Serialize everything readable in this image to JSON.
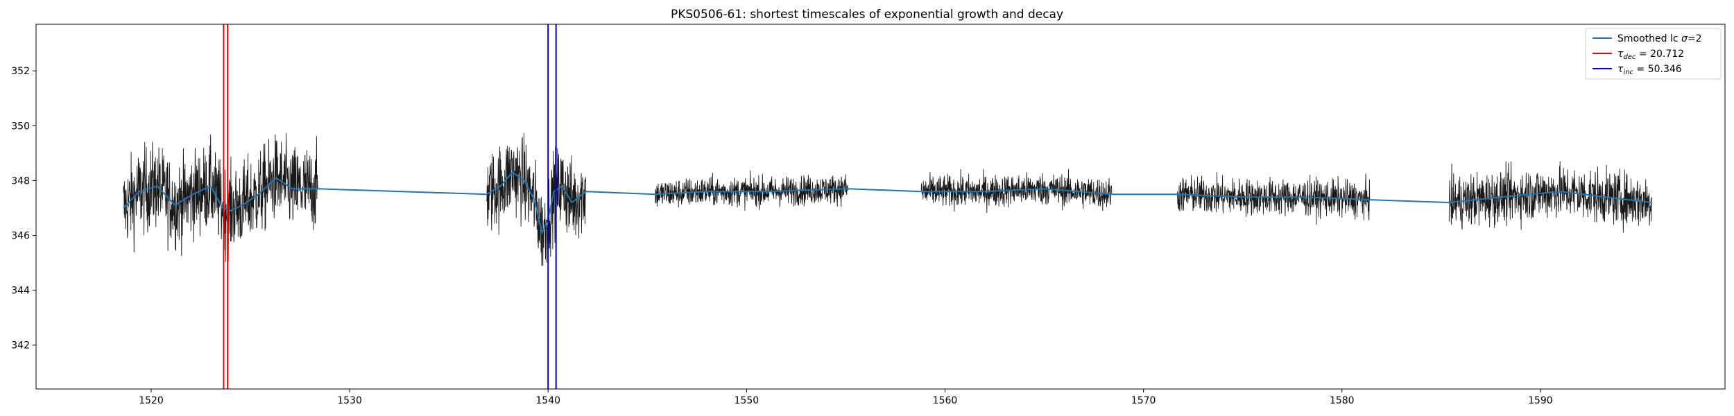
{
  "chart_data": {
    "type": "line",
    "title": "PKS0506-61: shortest timescales of exponential growth and decay",
    "xlabel": "",
    "ylabel": "",
    "xlim": [
      1514.2,
      1599.3
    ],
    "ylim": [
      340.4,
      353.7
    ],
    "xticks": [
      1520,
      1530,
      1540,
      1550,
      1560,
      1570,
      1580,
      1590
    ],
    "yticks": [
      342,
      344,
      346,
      348,
      350,
      352
    ],
    "grid": false,
    "legend_position": "top-right",
    "raw_lightcurve": {
      "color": "#000000",
      "noise_scale": 0.75,
      "segments": [
        {
          "x_start": 1518.6,
          "x_end": 1528.4,
          "y_min": 344.3,
          "y_max": 350.1
        },
        {
          "x_start": 1536.9,
          "x_end": 1541.9,
          "y_min": 344.4,
          "y_max": 350.1
        },
        {
          "x_start": 1545.4,
          "x_end": 1555.1,
          "y_min": 346.7,
          "y_max": 348.7
        },
        {
          "x_start": 1558.8,
          "x_end": 1568.4,
          "y_min": 346.5,
          "y_max": 348.7
        },
        {
          "x_start": 1571.7,
          "x_end": 1581.4,
          "y_min": 346.3,
          "y_max": 348.8
        },
        {
          "x_start": 1585.4,
          "x_end": 1595.6,
          "y_min": 345.6,
          "y_max": 349.2
        }
      ]
    },
    "series": [
      {
        "name": "Smoothed lc σ=2",
        "color": "#1f77b4",
        "x": [
          1518.6,
          1519.4,
          1520.3,
          1521.2,
          1522.1,
          1523.0,
          1523.6,
          1524.0,
          1524.6,
          1525.4,
          1526.3,
          1527.1,
          1528.4,
          1536.9,
          1537.6,
          1538.2,
          1538.8,
          1539.3,
          1539.7,
          1540.0,
          1540.3,
          1540.7,
          1541.2,
          1541.9,
          1545.4,
          1548.0,
          1551.0,
          1555.1,
          1558.8,
          1562.0,
          1565.0,
          1568.4,
          1571.7,
          1575.0,
          1578.0,
          1581.4,
          1585.4,
          1588.0,
          1591.0,
          1595.6
        ],
        "y": [
          347.0,
          347.6,
          347.8,
          347.1,
          347.5,
          347.8,
          347.0,
          346.9,
          347.1,
          347.5,
          348.1,
          347.7,
          347.7,
          347.5,
          347.8,
          348.3,
          348.0,
          347.3,
          346.1,
          346.6,
          347.6,
          347.8,
          347.2,
          347.6,
          347.5,
          347.6,
          347.6,
          347.7,
          347.6,
          347.6,
          347.7,
          347.5,
          347.5,
          347.4,
          347.4,
          347.3,
          347.2,
          347.4,
          347.6,
          347.2
        ]
      }
    ],
    "vlines": [
      {
        "name": "τ_dec = 20.712",
        "legend_label": "= 20.712",
        "color": "#ff0000",
        "x": [
          1523.65,
          1523.85
        ]
      },
      {
        "name": "τ_inc = 50.346",
        "legend_label": "= 50.346",
        "color": "#0000cc",
        "x": [
          1540.0,
          1540.4
        ]
      }
    ],
    "legend": [
      {
        "key": "smooth",
        "symbol": "σ",
        "label_prefix": "Smoothed lc ",
        "label_suffix": "=2",
        "color": "#1f77b4"
      },
      {
        "key": "dec",
        "symbol": "τ",
        "subscript": "dec",
        "label_suffix": " = 20.712",
        "color": "#ff0000"
      },
      {
        "key": "inc",
        "symbol": "τ",
        "subscript": "inc",
        "label_suffix": " = 50.346",
        "color": "#0000cc"
      }
    ]
  }
}
